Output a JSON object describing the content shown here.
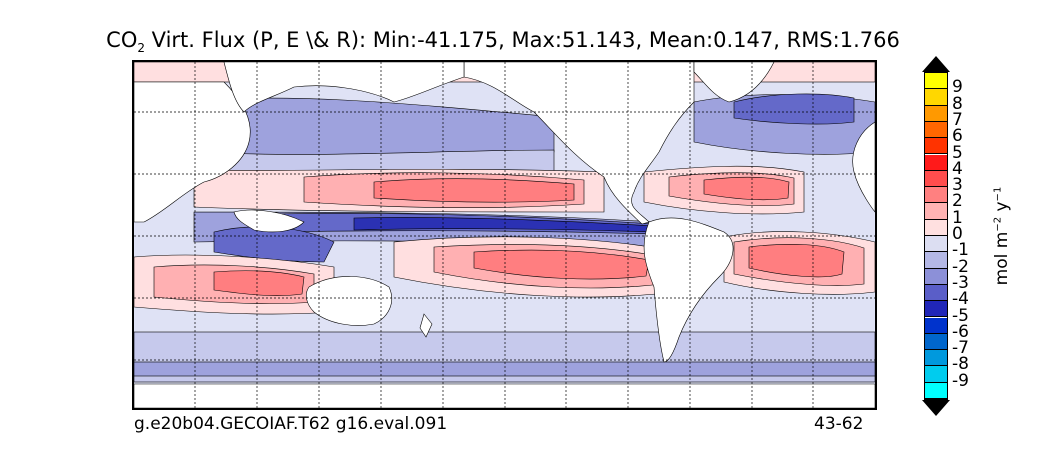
{
  "title": {
    "prefix": "CO",
    "subscript": "2",
    "suffix": " Virt. Flux (P, E \\& R): Min:-41.175, Max:51.143, Mean:0.147, RMS:1.766"
  },
  "footer": {
    "left": "g.e20b04.GECOIAF.T62 g16.eval.091",
    "right": "43-62"
  },
  "colorbar": {
    "label_parts": [
      "mol m",
      "−2",
      " y",
      "−1"
    ],
    "ticks": [
      "9",
      "8",
      "7",
      "6",
      "5",
      "4",
      "3",
      "2",
      "1",
      "0",
      "-1",
      "-2",
      "-3",
      "-4",
      "-5",
      "-6",
      "-7",
      "-8",
      "-9"
    ],
    "colors": [
      "#ffff00",
      "#ffd700",
      "#ff9900",
      "#ff6600",
      "#ff3300",
      "#ff1a1a",
      "#ff4d4d",
      "#ff8080",
      "#ffb3b3",
      "#ffe0e0",
      "#dcdef2",
      "#b4b8e6",
      "#8c90d8",
      "#5a5ec8",
      "#2026b8",
      "#0033cc",
      "#0066cc",
      "#0099dd",
      "#00ccee",
      "#00ffff"
    ],
    "extend": "both"
  },
  "map_colors": {
    "land": "#ffffff",
    "background": "#dfe2f5",
    "neg_light": "#c6c9ec",
    "neg_mid": "#9ea2dd",
    "neg_strong": "#6469c9",
    "neg_deep": "#2b31b3",
    "pos_light": "#ffdfe0",
    "pos_mid": "#ffb0b2",
    "pos_strong": "#ff7e80",
    "pos_deep": "#f25555"
  }
}
